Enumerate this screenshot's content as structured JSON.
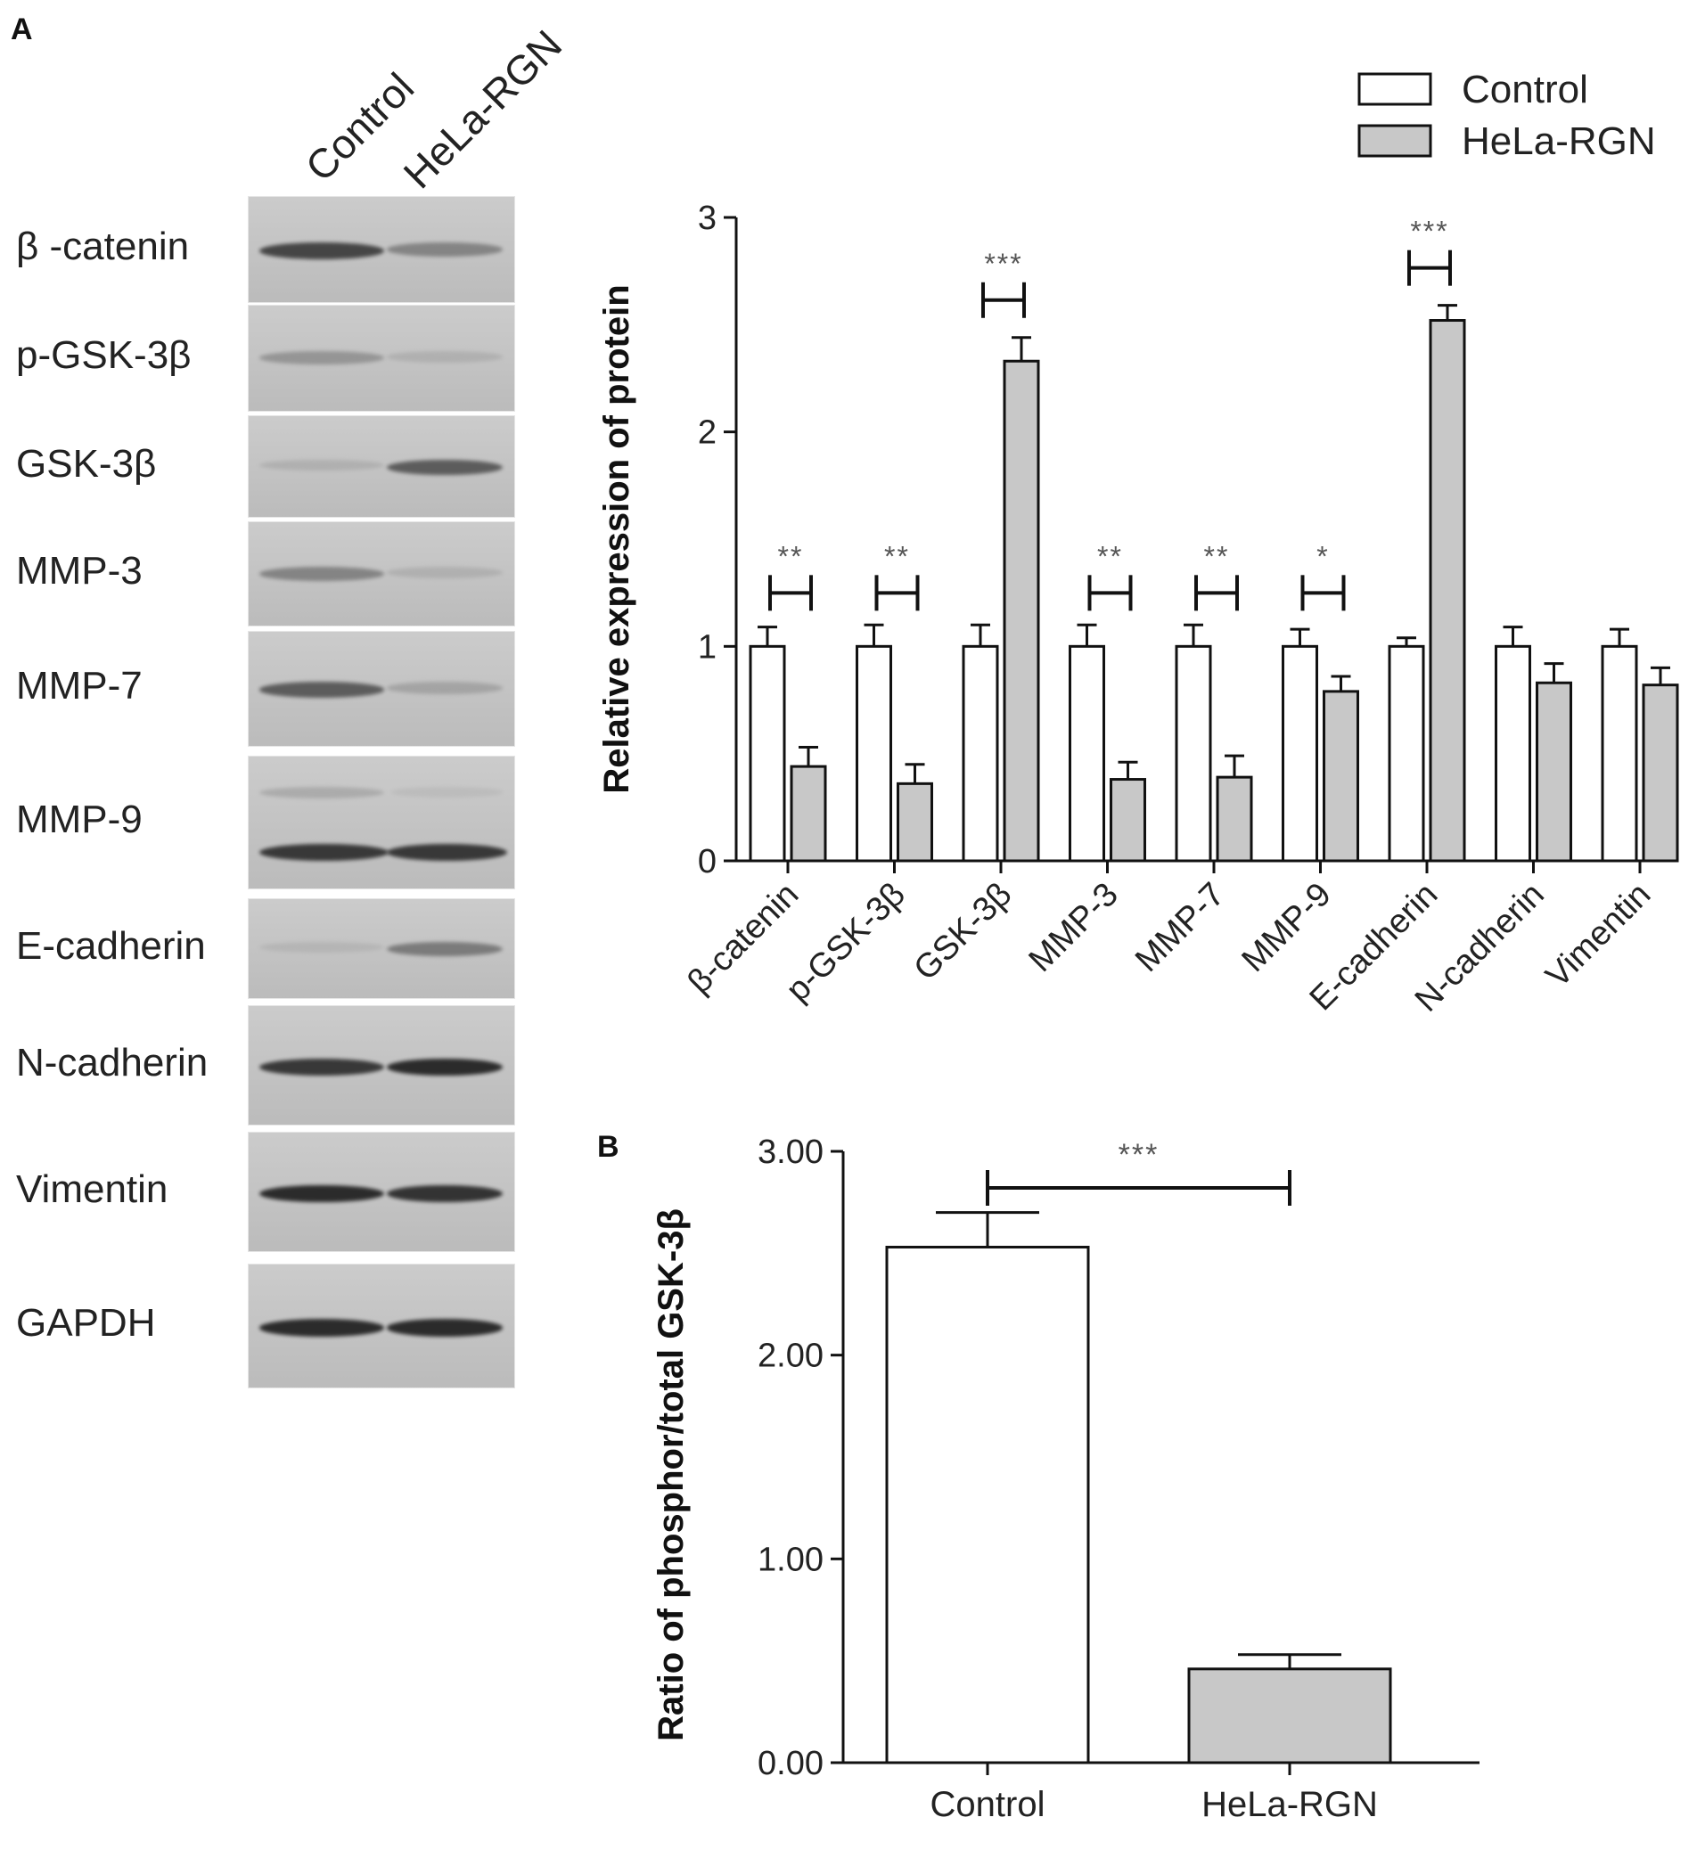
{
  "panel_a": {
    "letter": "A",
    "lane_headers": [
      "Control",
      "HeLa-RGN"
    ],
    "blot_rows": [
      {
        "label": "β -catenin",
        "ctrl": 0.85,
        "rgn": 0.55
      },
      {
        "label": "p-GSK-3β",
        "ctrl": 0.45,
        "rgn": 0.25
      },
      {
        "label": "GSK-3β",
        "ctrl": 0.25,
        "rgn": 0.75
      },
      {
        "label": "MMP-3",
        "ctrl": 0.55,
        "rgn": 0.25
      },
      {
        "label": "MMP-7",
        "ctrl": 0.75,
        "rgn": 0.35
      },
      {
        "label": "MMP-9",
        "ctrl": 0.9,
        "rgn": 0.9
      },
      {
        "label": "E-cadherin",
        "ctrl": 0.2,
        "rgn": 0.6
      },
      {
        "label": "N-cadherin",
        "ctrl": 0.9,
        "rgn": 0.95
      },
      {
        "label": "Vimentin",
        "ctrl": 0.95,
        "rgn": 0.92
      },
      {
        "label": "GAPDH",
        "ctrl": 0.95,
        "rgn": 0.95
      }
    ]
  },
  "panel_b_letter": "B",
  "colors": {
    "control": "#ffffff",
    "hela_rgn": "#c8c8c8",
    "axis": "#111111",
    "sig": "#555555"
  },
  "chart_data": [
    {
      "type": "bar",
      "title": "",
      "xlabel": "",
      "ylabel": "Relative expression of protein",
      "ylim": [
        0,
        3
      ],
      "yticks": [
        "0",
        "1",
        "2",
        "3"
      ],
      "legend": {
        "placement": "top-right",
        "entries": [
          "Control",
          "HeLa-RGN"
        ]
      },
      "categories": [
        "β-catenin",
        "p-GSK-3β",
        "GSK-3β",
        "MMP-3",
        "MMP-7",
        "MMP-9",
        "E-cadherin",
        "N-cadherin",
        "Vimentin"
      ],
      "series": [
        {
          "name": "Control",
          "values": [
            1.0,
            1.0,
            1.0,
            1.0,
            1.0,
            1.0,
            1.0,
            1.0,
            1.0
          ],
          "errors": [
            0.09,
            0.1,
            0.1,
            0.1,
            0.1,
            0.08,
            0.04,
            0.09,
            0.08
          ]
        },
        {
          "name": "HeLa-RGN",
          "values": [
            0.44,
            0.36,
            2.33,
            0.38,
            0.39,
            0.79,
            2.52,
            0.83,
            0.82
          ],
          "errors": [
            0.09,
            0.09,
            0.11,
            0.08,
            0.1,
            0.07,
            0.07,
            0.09,
            0.08
          ]
        }
      ],
      "significance": [
        "**",
        "**",
        "***",
        "**",
        "**",
        "*",
        "***",
        "",
        ""
      ]
    },
    {
      "type": "bar",
      "title": "",
      "xlabel": "",
      "ylabel": "Ratio of phosphor/total GSK-3β",
      "ylim": [
        0,
        3
      ],
      "yticks": [
        "0.00",
        "1.00",
        "2.00",
        "3.00"
      ],
      "categories": [
        "Control",
        "HeLa-RGN"
      ],
      "values": [
        2.53,
        0.46
      ],
      "errors": [
        0.17,
        0.07
      ],
      "significance": "***"
    }
  ]
}
